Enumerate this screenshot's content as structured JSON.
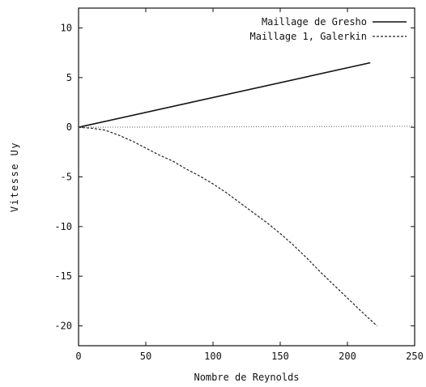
{
  "chart_data": {
    "type": "line",
    "xlabel": "Nombre de Reynolds",
    "ylabel": "Vitesse Uy",
    "xlim": [
      0,
      250
    ],
    "ylim": [
      -22,
      12
    ],
    "x_ticks": [
      0,
      50,
      100,
      150,
      200,
      250
    ],
    "y_ticks": [
      10,
      5,
      0,
      -5,
      -10,
      -15,
      -20
    ],
    "grid": false,
    "legend_position": "top-right",
    "series": [
      {
        "name": "Maillage de Gresho",
        "style": "solid",
        "color": "#111111",
        "x": [
          0,
          217
        ],
        "y": [
          0,
          6.5
        ]
      },
      {
        "name": "Maillage 1, Galerkin",
        "style": "dashed",
        "color": "#222222",
        "x": [
          0,
          10,
          20,
          30,
          40,
          50,
          60,
          70,
          80,
          90,
          100,
          110,
          120,
          130,
          140,
          150,
          160,
          170,
          180,
          190,
          200,
          210,
          222
        ],
        "y": [
          0,
          -0.1,
          -0.3,
          -0.8,
          -1.4,
          -2.1,
          -2.8,
          -3.4,
          -4.2,
          -4.9,
          -5.7,
          -6.6,
          -7.6,
          -8.6,
          -9.6,
          -10.7,
          -11.9,
          -13.2,
          -14.6,
          -15.9,
          -17.2,
          -18.5,
          -20.0
        ]
      },
      {
        "name": "",
        "style": "dotted",
        "color": "#777777",
        "x": [
          0,
          250
        ],
        "y": [
          0,
          0.1
        ]
      }
    ]
  }
}
